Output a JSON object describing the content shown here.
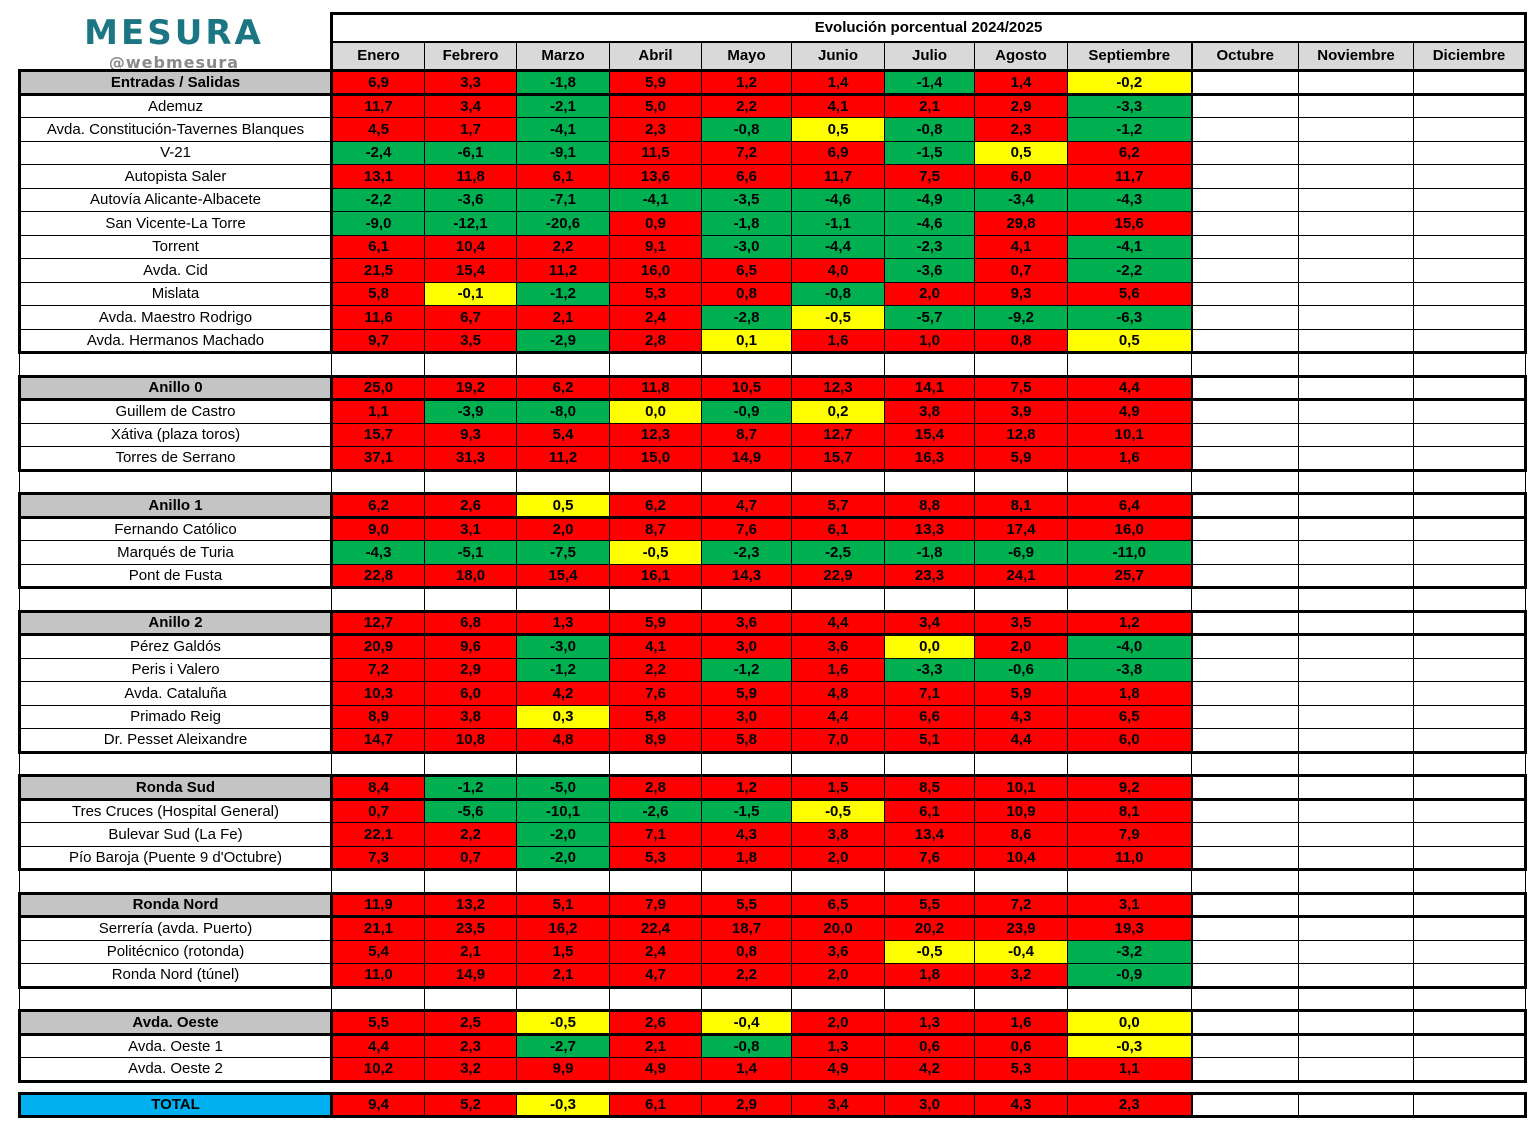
{
  "logo": {
    "brand": "MESURA",
    "handle": "@webmesura"
  },
  "table": {
    "title": "Evolución porcentual 2024/2025",
    "months": [
      "Enero",
      "Febrero",
      "Marzo",
      "Abril",
      "Mayo",
      "Junio",
      "Julio",
      "Agosto",
      "Septiembre",
      "Octubre",
      "Noviembre",
      "Diciembre"
    ],
    "filled_months": 9
  },
  "colors": {
    "red": "#ff0000",
    "green": "#00b050",
    "yellow": "#ffff00",
    "title_bg": "#9d9d9d",
    "month_header_bg": "#d9d9d9",
    "section_header_bg": "#c4c4c4",
    "total_bg": "#00b0f0"
  },
  "sections": [
    {
      "label": "Entradas / Salidas",
      "values": [
        "6,9",
        "3,3",
        "-1,8",
        "5,9",
        "1,2",
        "1,4",
        "-1,4",
        "1,4",
        "-0,2"
      ],
      "cell_colors": [
        "r",
        "r",
        "g",
        "r",
        "r",
        "r",
        "g",
        "r",
        "y"
      ],
      "rows": [
        {
          "label": "Ademuz",
          "values": [
            "11,7",
            "3,4",
            "-2,1",
            "5,0",
            "2,2",
            "4,1",
            "2,1",
            "2,9",
            "-3,3"
          ],
          "cell_colors": [
            "r",
            "r",
            "g",
            "r",
            "r",
            "r",
            "r",
            "r",
            "g"
          ]
        },
        {
          "label": "Avda. Constitución-Tavernes Blanques",
          "values": [
            "4,5",
            "1,7",
            "-4,1",
            "2,3",
            "-0,8",
            "0,5",
            "-0,8",
            "2,3",
            "-1,2"
          ],
          "cell_colors": [
            "r",
            "r",
            "g",
            "r",
            "g",
            "y",
            "g",
            "r",
            "g"
          ]
        },
        {
          "label": "V-21",
          "values": [
            "-2,4",
            "-6,1",
            "-9,1",
            "11,5",
            "7,2",
            "6,9",
            "-1,5",
            "0,5",
            "6,2"
          ],
          "cell_colors": [
            "g",
            "g",
            "g",
            "r",
            "r",
            "r",
            "g",
            "y",
            "r"
          ]
        },
        {
          "label": "Autopista Saler",
          "values": [
            "13,1",
            "11,8",
            "6,1",
            "13,6",
            "6,6",
            "11,7",
            "7,5",
            "6,0",
            "11,7"
          ],
          "cell_colors": [
            "r",
            "r",
            "r",
            "r",
            "r",
            "r",
            "r",
            "r",
            "r"
          ]
        },
        {
          "label": "Autovía Alicante-Albacete",
          "values": [
            "-2,2",
            "-3,6",
            "-7,1",
            "-4,1",
            "-3,5",
            "-4,6",
            "-4,9",
            "-3,4",
            "-4,3"
          ],
          "cell_colors": [
            "g",
            "g",
            "g",
            "g",
            "g",
            "g",
            "g",
            "g",
            "g"
          ]
        },
        {
          "label": "San Vicente-La Torre",
          "values": [
            "-9,0",
            "-12,1",
            "-20,6",
            "0,9",
            "-1,8",
            "-1,1",
            "-4,6",
            "29,8",
            "15,6"
          ],
          "cell_colors": [
            "g",
            "g",
            "g",
            "r",
            "g",
            "g",
            "g",
            "r",
            "r"
          ]
        },
        {
          "label": "Torrent",
          "values": [
            "6,1",
            "10,4",
            "2,2",
            "9,1",
            "-3,0",
            "-4,4",
            "-2,3",
            "4,1",
            "-4,1"
          ],
          "cell_colors": [
            "r",
            "r",
            "r",
            "r",
            "g",
            "g",
            "g",
            "r",
            "g"
          ]
        },
        {
          "label": "Avda. Cid",
          "values": [
            "21,5",
            "15,4",
            "11,2",
            "16,0",
            "6,5",
            "4,0",
            "-3,6",
            "0,7",
            "-2,2"
          ],
          "cell_colors": [
            "r",
            "r",
            "r",
            "r",
            "r",
            "r",
            "g",
            "r",
            "g"
          ]
        },
        {
          "label": "Mislata",
          "values": [
            "5,8",
            "-0,1",
            "-1,2",
            "5,3",
            "0,8",
            "-0,8",
            "2,0",
            "9,3",
            "5,6"
          ],
          "cell_colors": [
            "r",
            "y",
            "g",
            "r",
            "r",
            "g",
            "r",
            "r",
            "r"
          ]
        },
        {
          "label": "Avda. Maestro Rodrigo",
          "values": [
            "11,6",
            "6,7",
            "2,1",
            "2,4",
            "-2,8",
            "-0,5",
            "-5,7",
            "-9,2",
            "-6,3"
          ],
          "cell_colors": [
            "r",
            "r",
            "r",
            "r",
            "g",
            "y",
            "g",
            "g",
            "g"
          ]
        },
        {
          "label": "Avda. Hermanos Machado",
          "values": [
            "9,7",
            "3,5",
            "-2,9",
            "2,8",
            "0,1",
            "1,6",
            "1,0",
            "0,8",
            "0,5"
          ],
          "cell_colors": [
            "r",
            "r",
            "g",
            "r",
            "y",
            "r",
            "r",
            "r",
            "y"
          ]
        }
      ]
    },
    {
      "label": "Anillo 0",
      "values": [
        "25,0",
        "19,2",
        "6,2",
        "11,8",
        "10,5",
        "12,3",
        "14,1",
        "7,5",
        "4,4"
      ],
      "cell_colors": [
        "r",
        "r",
        "r",
        "r",
        "r",
        "r",
        "r",
        "r",
        "r"
      ],
      "rows": [
        {
          "label": "Guillem de Castro",
          "values": [
            "1,1",
            "-3,9",
            "-8,0",
            "0,0",
            "-0,9",
            "0,2",
            "3,8",
            "3,9",
            "4,9"
          ],
          "cell_colors": [
            "r",
            "g",
            "g",
            "y",
            "g",
            "y",
            "r",
            "r",
            "r"
          ]
        },
        {
          "label": "Xátiva (plaza toros)",
          "values": [
            "15,7",
            "9,3",
            "5,4",
            "12,3",
            "8,7",
            "12,7",
            "15,4",
            "12,8",
            "10,1"
          ],
          "cell_colors": [
            "r",
            "r",
            "r",
            "r",
            "r",
            "r",
            "r",
            "r",
            "r"
          ]
        },
        {
          "label": "Torres de Serrano",
          "values": [
            "37,1",
            "31,3",
            "11,2",
            "15,0",
            "14,9",
            "15,7",
            "16,3",
            "5,9",
            "1,6"
          ],
          "cell_colors": [
            "r",
            "r",
            "r",
            "r",
            "r",
            "r",
            "r",
            "r",
            "r"
          ]
        }
      ]
    },
    {
      "label": "Anillo 1",
      "values": [
        "6,2",
        "2,6",
        "0,5",
        "6,2",
        "4,7",
        "5,7",
        "8,8",
        "8,1",
        "6,4"
      ],
      "cell_colors": [
        "r",
        "r",
        "y",
        "r",
        "r",
        "r",
        "r",
        "r",
        "r"
      ],
      "rows": [
        {
          "label": "Fernando Católico",
          "values": [
            "9,0",
            "3,1",
            "2,0",
            "8,7",
            "7,6",
            "6,1",
            "13,3",
            "17,4",
            "16,0"
          ],
          "cell_colors": [
            "r",
            "r",
            "r",
            "r",
            "r",
            "r",
            "r",
            "r",
            "r"
          ]
        },
        {
          "label": "Marqués de Turia",
          "values": [
            "-4,3",
            "-5,1",
            "-7,5",
            "-0,5",
            "-2,3",
            "-2,5",
            "-1,8",
            "-6,9",
            "-11,0"
          ],
          "cell_colors": [
            "g",
            "g",
            "g",
            "y",
            "g",
            "g",
            "g",
            "g",
            "g"
          ]
        },
        {
          "label": "Pont de Fusta",
          "values": [
            "22,8",
            "18,0",
            "15,4",
            "16,1",
            "14,3",
            "22,9",
            "23,3",
            "24,1",
            "25,7"
          ],
          "cell_colors": [
            "r",
            "r",
            "r",
            "r",
            "r",
            "r",
            "r",
            "r",
            "r"
          ]
        }
      ]
    },
    {
      "label": "Anillo 2",
      "values": [
        "12,7",
        "6,8",
        "1,3",
        "5,9",
        "3,6",
        "4,4",
        "3,4",
        "3,5",
        "1,2"
      ],
      "cell_colors": [
        "r",
        "r",
        "r",
        "r",
        "r",
        "r",
        "r",
        "r",
        "r"
      ],
      "rows": [
        {
          "label": "Pérez Galdós",
          "values": [
            "20,9",
            "9,6",
            "-3,0",
            "4,1",
            "3,0",
            "3,6",
            "0,0",
            "2,0",
            "-4,0"
          ],
          "cell_colors": [
            "r",
            "r",
            "g",
            "r",
            "r",
            "r",
            "y",
            "r",
            "g"
          ]
        },
        {
          "label": "Peris i Valero",
          "values": [
            "7,2",
            "2,9",
            "-1,2",
            "2,2",
            "-1,2",
            "1,6",
            "-3,3",
            "-0,6",
            "-3,8"
          ],
          "cell_colors": [
            "r",
            "r",
            "g",
            "r",
            "g",
            "r",
            "g",
            "g",
            "g"
          ]
        },
        {
          "label": "Avda. Cataluña",
          "values": [
            "10,3",
            "6,0",
            "4,2",
            "7,6",
            "5,9",
            "4,8",
            "7,1",
            "5,9",
            "1,8"
          ],
          "cell_colors": [
            "r",
            "r",
            "r",
            "r",
            "r",
            "r",
            "r",
            "r",
            "r"
          ]
        },
        {
          "label": "Primado Reig",
          "values": [
            "8,9",
            "3,8",
            "0,3",
            "5,8",
            "3,0",
            "4,4",
            "6,6",
            "4,3",
            "6,5"
          ],
          "cell_colors": [
            "r",
            "r",
            "y",
            "r",
            "r",
            "r",
            "r",
            "r",
            "r"
          ]
        },
        {
          "label": "Dr. Pesset Aleixandre",
          "values": [
            "14,7",
            "10,8",
            "4,8",
            "8,9",
            "5,8",
            "7,0",
            "5,1",
            "4,4",
            "6,0"
          ],
          "cell_colors": [
            "r",
            "r",
            "r",
            "r",
            "r",
            "r",
            "r",
            "r",
            "r"
          ]
        }
      ]
    },
    {
      "label": "Ronda Sud",
      "values": [
        "8,4",
        "-1,2",
        "-5,0",
        "2,8",
        "1,2",
        "1,5",
        "8,5",
        "10,1",
        "9,2"
      ],
      "cell_colors": [
        "r",
        "g",
        "g",
        "r",
        "r",
        "r",
        "r",
        "r",
        "r"
      ],
      "rows": [
        {
          "label": "Tres Cruces (Hospital General)",
          "values": [
            "0,7",
            "-5,6",
            "-10,1",
            "-2,6",
            "-1,5",
            "-0,5",
            "6,1",
            "10,9",
            "8,1"
          ],
          "cell_colors": [
            "r",
            "g",
            "g",
            "g",
            "g",
            "y",
            "r",
            "r",
            "r"
          ]
        },
        {
          "label": "Bulevar Sud (La Fe)",
          "values": [
            "22,1",
            "2,2",
            "-2,0",
            "7,1",
            "4,3",
            "3,8",
            "13,4",
            "8,6",
            "7,9"
          ],
          "cell_colors": [
            "r",
            "r",
            "g",
            "r",
            "r",
            "r",
            "r",
            "r",
            "r"
          ]
        },
        {
          "label": "Pío Baroja (Puente 9 d'Octubre)",
          "values": [
            "7,3",
            "0,7",
            "-2,0",
            "5,3",
            "1,8",
            "2,0",
            "7,6",
            "10,4",
            "11,0"
          ],
          "cell_colors": [
            "r",
            "r",
            "g",
            "r",
            "r",
            "r",
            "r",
            "r",
            "r"
          ]
        }
      ]
    },
    {
      "label": "Ronda Nord",
      "values": [
        "11,9",
        "13,2",
        "5,1",
        "7,9",
        "5,5",
        "6,5",
        "5,5",
        "7,2",
        "3,1"
      ],
      "cell_colors": [
        "r",
        "r",
        "r",
        "r",
        "r",
        "r",
        "r",
        "r",
        "r"
      ],
      "rows": [
        {
          "label": "Serrería (avda. Puerto)",
          "values": [
            "21,1",
            "23,5",
            "16,2",
            "22,4",
            "18,7",
            "20,0",
            "20,2",
            "23,9",
            "19,3"
          ],
          "cell_colors": [
            "r",
            "r",
            "r",
            "r",
            "r",
            "r",
            "r",
            "r",
            "r"
          ]
        },
        {
          "label": "Politécnico (rotonda)",
          "values": [
            "5,4",
            "2,1",
            "1,5",
            "2,4",
            "0,8",
            "3,6",
            "-0,5",
            "-0,4",
            "-3,2"
          ],
          "cell_colors": [
            "r",
            "r",
            "r",
            "r",
            "r",
            "r",
            "y",
            "y",
            "g"
          ]
        },
        {
          "label": "Ronda Nord (túnel)",
          "values": [
            "11,0",
            "14,9",
            "2,1",
            "4,7",
            "2,2",
            "2,0",
            "1,8",
            "3,2",
            "-0,9"
          ],
          "cell_colors": [
            "r",
            "r",
            "r",
            "r",
            "r",
            "r",
            "r",
            "r",
            "g"
          ]
        }
      ]
    },
    {
      "label": "Avda. Oeste",
      "values": [
        "5,5",
        "2,5",
        "-0,5",
        "2,6",
        "-0,4",
        "2,0",
        "1,3",
        "1,6",
        "0,0"
      ],
      "cell_colors": [
        "r",
        "r",
        "y",
        "r",
        "y",
        "r",
        "r",
        "r",
        "y"
      ],
      "rows": [
        {
          "label": "Avda. Oeste 1",
          "values": [
            "4,4",
            "2,3",
            "-2,7",
            "2,1",
            "-0,8",
            "1,3",
            "0,6",
            "0,6",
            "-0,3"
          ],
          "cell_colors": [
            "r",
            "r",
            "g",
            "r",
            "g",
            "r",
            "r",
            "r",
            "y"
          ]
        },
        {
          "label": "Avda. Oeste 2",
          "values": [
            "10,2",
            "3,2",
            "9,9",
            "4,9",
            "1,4",
            "4,9",
            "4,2",
            "5,3",
            "1,1"
          ],
          "cell_colors": [
            "r",
            "r",
            "r",
            "r",
            "r",
            "r",
            "r",
            "r",
            "r"
          ]
        }
      ]
    }
  ],
  "total": {
    "label": "TOTAL",
    "values": [
      "9,4",
      "5,2",
      "-0,3",
      "6,1",
      "2,9",
      "3,4",
      "3,0",
      "4,3",
      "2,3"
    ],
    "cell_colors": [
      "r",
      "r",
      "y",
      "r",
      "r",
      "r",
      "r",
      "r",
      "r"
    ]
  }
}
